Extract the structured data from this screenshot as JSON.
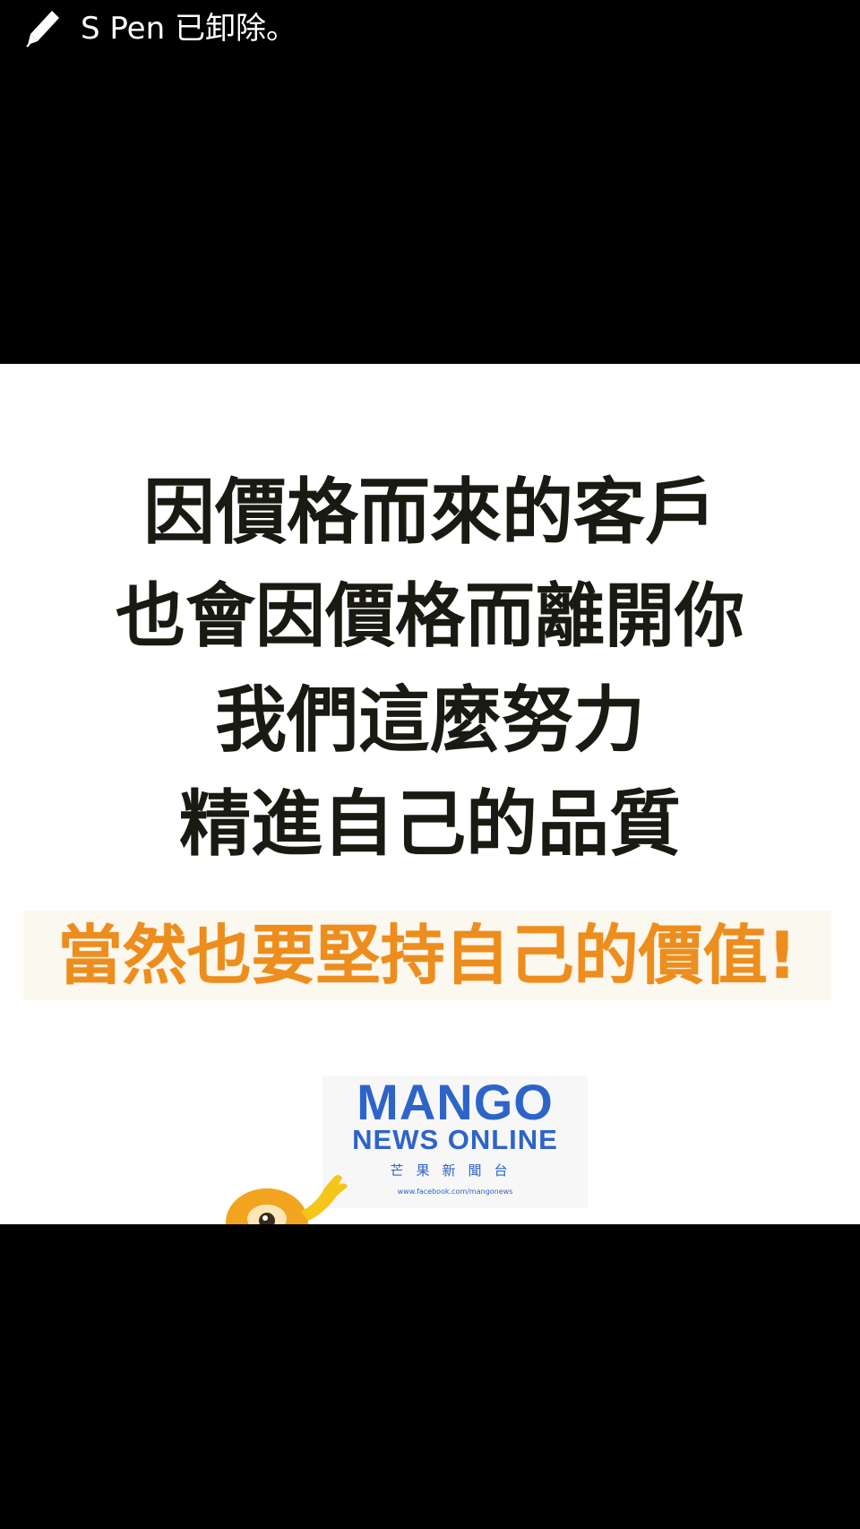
{
  "toast": {
    "icon": "pen-icon",
    "message": "S Pen 已卸除。"
  },
  "image": {
    "quote_lines": [
      "因價格而來的客戶",
      "也會因價格而離開你",
      "我們這麼努力",
      "精進自己的品質"
    ],
    "highlight": "當然也要堅持自己的價值!",
    "logo": {
      "line1": "MANGO",
      "line2": "NEWS ONLINE",
      "line3": "芒果新聞台",
      "line4": "www.facebook.com/mangonews"
    },
    "colors": {
      "quote_text": "#1a1a12",
      "highlight_text": "#ec8d1d",
      "logo_blue": "#2d64c8",
      "mascot_orange": "#f3a41e"
    },
    "mascot_icon": "mango-mascot-icon"
  }
}
